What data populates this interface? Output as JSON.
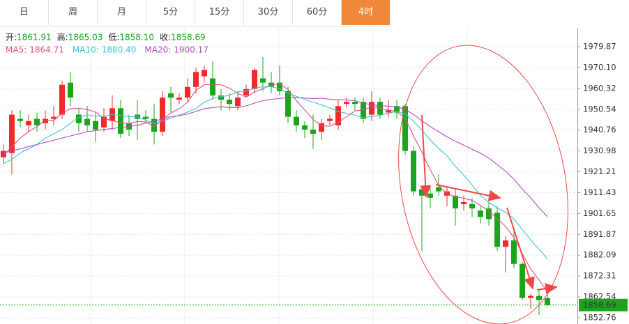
{
  "tabs": [
    "日",
    "周",
    "月",
    "5分",
    "15分",
    "30分",
    "60分",
    "4时"
  ],
  "active_tab": 7,
  "header": {
    "labels": [
      "开:",
      "高:",
      "低:",
      "收:"
    ],
    "values": [
      "1861.91",
      "1865.03",
      "1858.10",
      "1858.69"
    ]
  },
  "chart_data": {
    "type": "candlestick",
    "up_color": "#f02a2a",
    "down_color": "#1aa51a",
    "ylim": [
      1849.8,
      1988.7
    ],
    "yticks": [
      1979.87,
      {
        "value": 1970.1,
        "label": "1970.10"
      },
      1960.32,
      1950.54,
      1940.76,
      1930.98,
      1921.21,
      1911.43,
      1901.65,
      1891.87,
      1882.09,
      1872.31,
      1862.54,
      1852.76
    ],
    "grid": true,
    "open": [
      1928,
      1930,
      1946,
      1943,
      1946,
      1944,
      1946,
      1948,
      1963,
      1948,
      1946,
      1945,
      1942,
      1945,
      1951,
      1944,
      1948,
      1947,
      1946,
      1940,
      1958,
      1955,
      1956,
      1961,
      1966,
      1965,
      1957,
      1955,
      1952,
      1957,
      1960,
      1965,
      1963,
      1963,
      1959,
      1947,
      1943,
      1941,
      1940,
      1945,
      1943,
      1953,
      1954,
      1954,
      1948,
      1954,
      1949,
      1952,
      1952,
      1931,
      1913,
      1911,
      1914,
      1910,
      1910,
      1906,
      1906,
      1903,
      1904,
      1902,
      1886,
      1889,
      1878,
      1862,
      1863,
      1861.91
    ],
    "high": [
      1934,
      1950,
      1950,
      1948,
      1949,
      1950,
      1952,
      1964,
      1968,
      1951,
      1952,
      1949,
      1951,
      1957,
      1955,
      1948,
      1955,
      1950,
      1953,
      1959,
      1961,
      1958,
      1965,
      1970,
      1971,
      1973,
      1960,
      1958,
      1959,
      1962,
      1970,
      1975,
      1968,
      1971,
      1961,
      1950,
      1945,
      1948,
      1946,
      1948,
      1955,
      1956,
      1956,
      1956,
      1959,
      1956,
      1955,
      1955,
      1953,
      1933,
      1914,
      1914,
      1920,
      1914,
      1913,
      1910,
      1909,
      1905,
      1907,
      1905,
      1891,
      1895,
      1879,
      1864,
      1866,
      1865.03
    ],
    "low": [
      1925,
      1920,
      1942,
      1940,
      1940,
      1941,
      1943,
      1946,
      1952,
      1940,
      1940,
      1935,
      1940,
      1941,
      1937,
      1938,
      1936,
      1944,
      1934,
      1938,
      1949,
      1953,
      1954,
      1958,
      1963,
      1955,
      1950,
      1950,
      1950,
      1956,
      1958,
      1959,
      1958,
      1957,
      1944,
      1940,
      1937,
      1932,
      1936,
      1943,
      1941,
      1951,
      1950,
      1944,
      1945,
      1946,
      1947,
      1946,
      1929,
      1910,
      1884,
      1904,
      1910,
      1905,
      1896,
      1903,
      1900,
      1897,
      1896,
      1884,
      1874,
      1876,
      1861,
      1857,
      1854,
      1858.1
    ],
    "close": [
      1931,
      1948,
      1945,
      1945,
      1943,
      1946,
      1947,
      1962,
      1956,
      1944,
      1943,
      1941,
      1947,
      1951,
      1939,
      1941,
      1946,
      1946,
      1940,
      1956,
      1956,
      1956,
      1961,
      1968,
      1969,
      1957,
      1955,
      1953,
      1956,
      1960,
      1969,
      1963,
      1961,
      1959,
      1947,
      1943,
      1941,
      1939,
      1944,
      1946,
      1952,
      1954,
      1953,
      1946,
      1954,
      1948,
      1950,
      1949,
      1931,
      1912,
      1910,
      1909,
      1912,
      1912,
      1904,
      1907,
      1904,
      1900,
      1899,
      1886,
      1889,
      1878,
      1862,
      1863,
      1861,
      1858.69
    ],
    "series": [
      {
        "name": "MA5:",
        "last_label": "1864.71",
        "color": "#e0508a",
        "values": [
          1929,
          1933,
          1937,
          1940,
          1942.4,
          1945.4,
          1945.2,
          1948.6,
          1950.8,
          1951,
          1950.4,
          1949.2,
          1946.2,
          1945.2,
          1944.2,
          1943.8,
          1944.8,
          1944.6,
          1942.4,
          1945.8,
          1948.8,
          1950.8,
          1953.8,
          1959.4,
          1962,
          1962.2,
          1962,
          1960.4,
          1958,
          1956.2,
          1958.6,
          1960.2,
          1961.8,
          1962.4,
          1959.8,
          1954.6,
          1950.2,
          1945.8,
          1942.8,
          1942.6,
          1944.4,
          1947,
          1949.8,
          1950.2,
          1951.8,
          1951,
          1950.2,
          1949.4,
          1946.4,
          1938,
          1930.4,
          1922.2,
          1914.8,
          1911,
          1909.4,
          1908.8,
          1907.8,
          1905.4,
          1902.8,
          1899.2,
          1895.6,
          1890.4,
          1882.8,
          1875.6,
          1870.6,
          1864.71
        ]
      },
      {
        "name": "MA10:",
        "last_label": "1880.40",
        "color": "#3cc4d6",
        "values": [
          1925,
          1927,
          1930,
          1932,
          1934,
          1937,
          1939,
          1941,
          1944,
          1946.7,
          1947.9,
          1947.2,
          1947.4,
          1948,
          1947.6,
          1947.1,
          1947,
          1945.4,
          1943.8,
          1945,
          1946.3,
          1947.8,
          1949.2,
          1950.9,
          1953.9,
          1955.5,
          1956.4,
          1957.1,
          1958.7,
          1959.1,
          1960.4,
          1961.1,
          1961.1,
          1960.2,
          1958,
          1956.6,
          1955.2,
          1953.8,
          1952.6,
          1951.2,
          1949.5,
          1948.6,
          1947.8,
          1946.5,
          1947.2,
          1947.7,
          1948.6,
          1949.6,
          1948.3,
          1944.9,
          1940.7,
          1936.2,
          1932.1,
          1928.7,
          1923.7,
          1919.6,
          1915,
          1910.1,
          1906.9,
          1904.3,
          1902.2,
          1899.1,
          1894.1,
          1889.2,
          1884.9,
          1880.4
        ]
      },
      {
        "name": "MA20:",
        "last_label": "1900.17",
        "color": "#b24cc0",
        "values": [
          1930,
          1931,
          1932,
          1933,
          1934,
          1935,
          1936,
          1937,
          1938,
          1939,
          1940,
          1940.5,
          1941,
          1941.5,
          1942,
          1942.5,
          1943,
          1944,
          1945,
          1945.9,
          1947.1,
          1947.5,
          1948.3,
          1949.5,
          1950.8,
          1951.3,
          1951.7,
          1951.3,
          1951.3,
          1952.1,
          1953.4,
          1954.5,
          1955.2,
          1955.6,
          1956,
          1956.1,
          1955.8,
          1955.5,
          1955.7,
          1955.2,
          1955,
          1954.9,
          1954.5,
          1953.4,
          1952.6,
          1952.2,
          1951.9,
          1951.7,
          1950.5,
          1948.1,
          1945.1,
          1942.4,
          1940,
          1937.6,
          1935.5,
          1933.7,
          1931.8,
          1929.9,
          1927.6,
          1924.6,
          1921.5,
          1917.7,
          1913.1,
          1909,
          1904.3,
          1900.17
        ]
      }
    ]
  }
}
